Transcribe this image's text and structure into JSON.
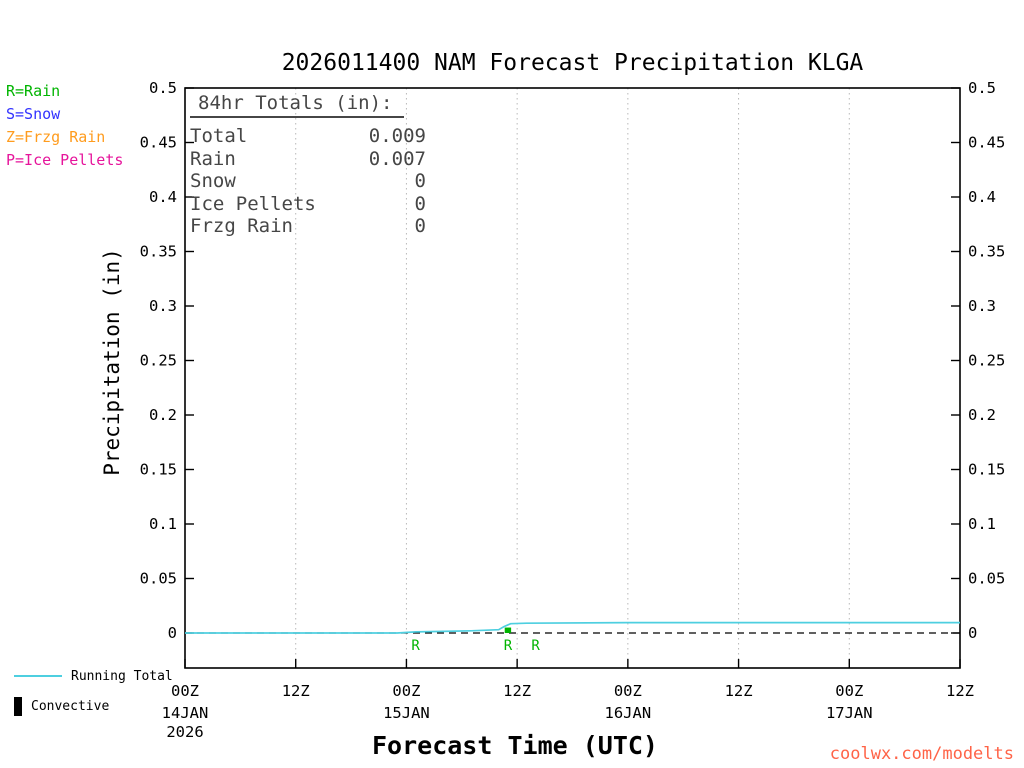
{
  "title": "2026011400 NAM Forecast Precipitation KLGA",
  "watermark": "coolwx.com/modelts",
  "watermark_color": "#ff6347",
  "ptype_legend": [
    {
      "label": "R=Rain",
      "color": "#00b400"
    },
    {
      "label": "S=Snow",
      "color": "#3232ff"
    },
    {
      "label": "Z=Frzg Rain",
      "color": "#ff9c1e"
    },
    {
      "label": "P=Ice Pellets",
      "color": "#e6149b"
    }
  ],
  "totals_box": {
    "heading": "84hr Totals (in):",
    "text_color": "#464646",
    "rows": [
      {
        "label": "Total",
        "value": "0.009"
      },
      {
        "label": "Rain",
        "value": "0.007"
      },
      {
        "label": "Snow",
        "value": "0"
      },
      {
        "label": "Ice Pellets",
        "value": "0"
      },
      {
        "label": "Frzg Rain",
        "value": "0"
      }
    ]
  },
  "bottom_legend": [
    {
      "label": "Running Total",
      "swatch": "line",
      "color": "#4ecfe0"
    },
    {
      "label": "Convective",
      "swatch": "bar",
      "color": "#000000"
    }
  ],
  "chart_data": {
    "type": "line",
    "title": "2026011400 NAM Forecast Precipitation KLGA",
    "xlabel": "Forecast Time (UTC)",
    "ylabel": "Precipitation (in)",
    "ylim": [
      -0.032,
      0.5
    ],
    "ytick_step": 0.05,
    "grid": "dotted-vertical",
    "grid_color": "#b8b8b8",
    "x_hours_range": [
      0,
      84
    ],
    "yticks": [
      {
        "v": 0,
        "label": "0"
      },
      {
        "v": 0.05,
        "label": "0.05"
      },
      {
        "v": 0.1,
        "label": "0.1"
      },
      {
        "v": 0.15,
        "label": "0.15"
      },
      {
        "v": 0.2,
        "label": "0.2"
      },
      {
        "v": 0.25,
        "label": "0.25"
      },
      {
        "v": 0.3,
        "label": "0.3"
      },
      {
        "v": 0.35,
        "label": "0.35"
      },
      {
        "v": 0.4,
        "label": "0.4"
      },
      {
        "v": 0.45,
        "label": "0.45"
      },
      {
        "v": 0.5,
        "label": "0.5"
      }
    ],
    "xticks": [
      {
        "hour": 0,
        "label": "00Z",
        "date": "14JAN",
        "year": "2026"
      },
      {
        "hour": 12,
        "label": "12Z"
      },
      {
        "hour": 24,
        "label": "00Z",
        "date": "15JAN"
      },
      {
        "hour": 36,
        "label": "12Z"
      },
      {
        "hour": 48,
        "label": "00Z",
        "date": "16JAN"
      },
      {
        "hour": 60,
        "label": "12Z"
      },
      {
        "hour": 72,
        "label": "00Z",
        "date": "17JAN"
      },
      {
        "hour": 84,
        "label": "12Z"
      }
    ],
    "zero_line": {
      "style": "dashed",
      "color": "#000000"
    },
    "series": [
      {
        "name": "Running Total",
        "color": "#4ecfe0",
        "points": [
          [
            0,
            0
          ],
          [
            23,
            0
          ],
          [
            25,
            0.001
          ],
          [
            28,
            0.0015
          ],
          [
            31,
            0.002
          ],
          [
            34,
            0.003
          ],
          [
            34.6,
            0.006
          ],
          [
            35.3,
            0.0085
          ],
          [
            37,
            0.009
          ],
          [
            48,
            0.0095
          ],
          [
            84,
            0.0095
          ]
        ]
      }
    ],
    "convective_bars": [
      {
        "hour": 35,
        "value": 0.005,
        "color": "#00b400"
      }
    ],
    "rain_markers": {
      "symbol": "R",
      "color": "#00b400",
      "hours": [
        25,
        35,
        38
      ]
    }
  }
}
